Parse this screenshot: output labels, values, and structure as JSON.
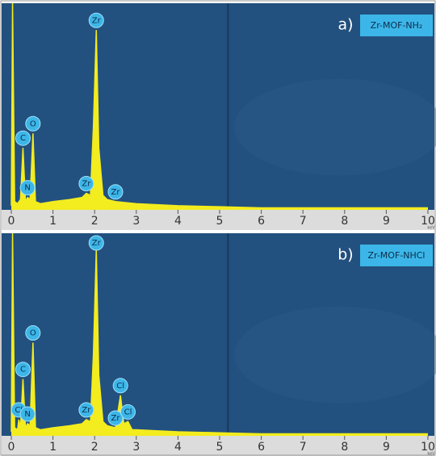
{
  "chart_data": [
    {
      "type": "line",
      "panel_label": "a)",
      "title": "Zr-MOF-NH₂",
      "x_label": "keV",
      "xlim": [
        0,
        10
      ],
      "xticks": [
        0,
        1,
        2,
        3,
        4,
        5,
        6,
        7,
        8,
        9,
        10
      ],
      "ylim": [
        0,
        100
      ],
      "color": "#f3ec1e",
      "marker_line": 5.2,
      "x": [
        0,
        0.03,
        0.08,
        0.15,
        0.22,
        0.28,
        0.34,
        0.39,
        0.45,
        0.52,
        0.58,
        0.7,
        1.0,
        1.4,
        1.7,
        1.8,
        1.9,
        1.97,
        2.04,
        2.1,
        2.2,
        2.3,
        2.5,
        3,
        4,
        5,
        6,
        8,
        10
      ],
      "values": [
        2,
        100,
        4,
        3,
        5,
        30,
        4,
        6,
        5,
        37,
        4,
        3,
        4,
        5,
        6,
        8,
        7,
        40,
        87,
        30,
        7,
        5,
        4,
        3,
        2,
        1.5,
        1,
        1,
        1
      ],
      "annotations": [
        {
          "text": "C",
          "x": 0.28
        },
        {
          "text": "O",
          "x": 0.52
        },
        {
          "text": "N",
          "x": 0.39
        },
        {
          "text": "Zr",
          "x": 2.04
        },
        {
          "text": "Zr",
          "x": 1.8
        },
        {
          "text": "Zr",
          "x": 2.5
        }
      ]
    },
    {
      "type": "line",
      "panel_label": "b)",
      "title": "Zr-MOF-NHCl",
      "x_label": "keV",
      "xlim": [
        0,
        10
      ],
      "xticks": [
        0,
        1,
        2,
        3,
        4,
        5,
        6,
        7,
        8,
        9,
        10
      ],
      "ylim": [
        0,
        100
      ],
      "color": "#f3ec1e",
      "marker_line": 5.2,
      "x": [
        0,
        0.03,
        0.08,
        0.15,
        0.18,
        0.22,
        0.28,
        0.34,
        0.39,
        0.45,
        0.52,
        0.58,
        0.7,
        1.0,
        1.4,
        1.7,
        1.8,
        1.9,
        1.97,
        2.04,
        2.1,
        2.2,
        2.3,
        2.5,
        2.62,
        2.7,
        2.8,
        2.9,
        3,
        4,
        5,
        6,
        8,
        10
      ],
      "values": [
        2,
        100,
        4,
        3,
        8,
        4,
        28,
        4,
        6,
        5,
        46,
        4,
        3,
        4,
        5,
        6,
        8,
        7,
        40,
        92,
        30,
        7,
        5,
        4,
        20,
        6,
        7,
        3,
        3,
        2,
        1.5,
        1,
        1,
        1
      ],
      "annotations": [
        {
          "text": "Cl",
          "x": 0.18
        },
        {
          "text": "C",
          "x": 0.28
        },
        {
          "text": "O",
          "x": 0.52
        },
        {
          "text": "N",
          "x": 0.39
        },
        {
          "text": "Zr",
          "x": 2.04
        },
        {
          "text": "Zr",
          "x": 1.8
        },
        {
          "text": "Cl",
          "x": 2.62
        },
        {
          "text": "Zr",
          "x": 2.5
        },
        {
          "text": "Cl",
          "x": 2.8
        }
      ]
    }
  ]
}
